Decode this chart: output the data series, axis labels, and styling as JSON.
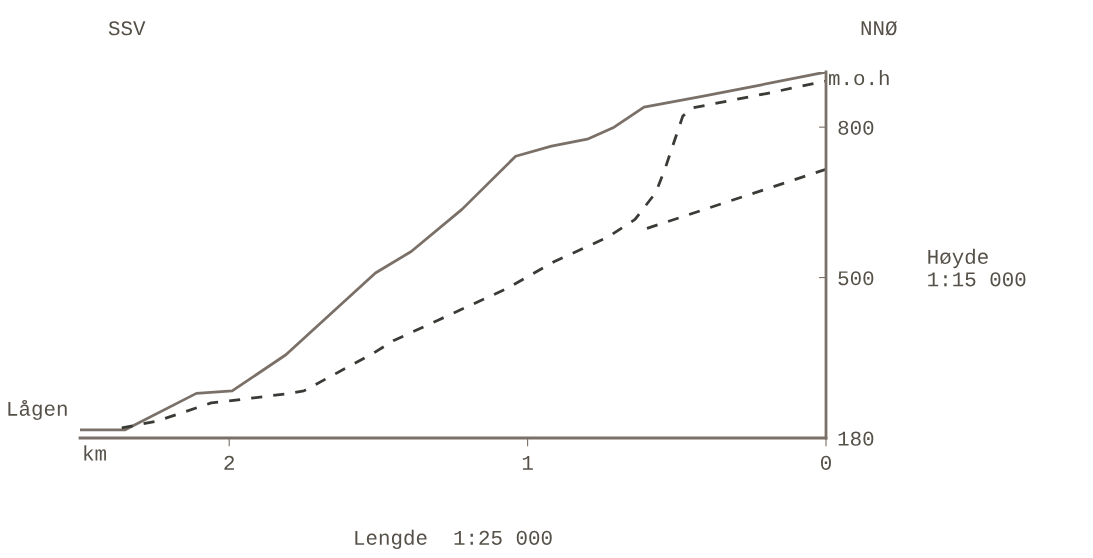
{
  "chart_data": {
    "type": "line",
    "xlabel": "Lengde  1:25 000",
    "ylabel": "Høyde\n1:15 000",
    "annotations": [
      "SSV",
      "NNØ",
      "m.o.h",
      "Lågen",
      "km"
    ],
    "xlim": [
      2.5,
      0
    ],
    "ylim": [
      180,
      910
    ],
    "xticks": [
      2,
      1,
      0
    ],
    "yticks": [
      180,
      500,
      800
    ],
    "grid": false,
    "legend": false,
    "marker": "none",
    "series": [
      {
        "color": "#7a7068",
        "line_style": "solid",
        "x": [
          2.5,
          2.35,
          2.11,
          1.99,
          1.81,
          1.51,
          1.39,
          1.22,
          1.04,
          0.92,
          0.8,
          0.71,
          0.61,
          0.42,
          0.22,
          0
        ],
        "values": [
          196,
          196,
          269,
          274,
          346,
          509,
          552,
          636,
          742,
          762,
          776,
          800,
          840,
          861,
          884,
          910
        ]
      },
      {
        "color": "#3a3a36",
        "line_style": "dashed",
        "x": [
          2.36,
          2.24,
          2.06,
          2.0,
          1.81,
          1.75,
          1.52,
          1.45,
          1.3,
          1.07,
          0.91,
          0.73,
          0.64,
          0.57,
          0.54,
          0.48,
          0.45,
          0.2,
          0
        ],
        "values": [
          200,
          214,
          250,
          254,
          268,
          274,
          348,
          374,
          415,
          478,
          532,
          581,
          616,
          670,
          716,
          822,
          838,
          867,
          892
        ]
      },
      {
        "color": "#3a3a36",
        "line_style": "dashed",
        "x": [
          0.6,
          0
        ],
        "values": [
          598,
          716
        ]
      }
    ]
  }
}
